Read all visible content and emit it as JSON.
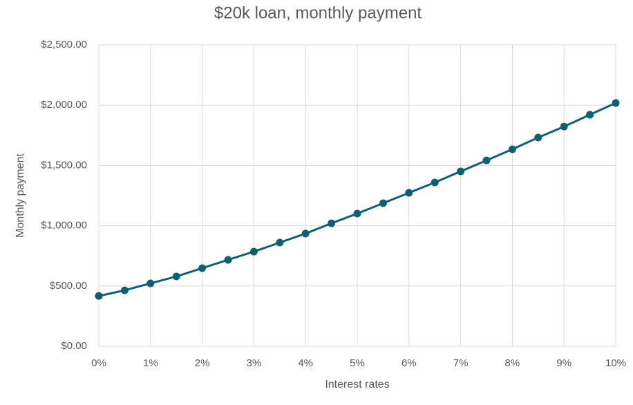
{
  "chart_data": {
    "type": "line",
    "title": "$20k loan, monthly payment",
    "x_label": "Interest rates",
    "y_label": "Monthly payment",
    "x": [
      0,
      0.5,
      1,
      1.5,
      2,
      2.5,
      3,
      3.5,
      4,
      4.5,
      5,
      5.5,
      6,
      6.5,
      7,
      7.5,
      8,
      8.5,
      9,
      9.5,
      10
    ],
    "values": [
      417,
      464,
      522,
      579,
      648,
      717,
      785,
      860,
      935,
      1020,
      1101,
      1187,
      1273,
      1359,
      1451,
      1542,
      1634,
      1732,
      1823,
      1921,
      2018
    ],
    "color": "#0f5f73",
    "xlim": [
      0,
      10
    ],
    "xticks": [
      {
        "value": 0,
        "label": "0%"
      },
      {
        "value": 1,
        "label": "1%"
      },
      {
        "value": 2,
        "label": "2%"
      },
      {
        "value": 3,
        "label": "3%"
      },
      {
        "value": 4,
        "label": "4%"
      },
      {
        "value": 5,
        "label": "5%"
      },
      {
        "value": 6,
        "label": "6%"
      },
      {
        "value": 7,
        "label": "7%"
      },
      {
        "value": 8,
        "label": "8%"
      },
      {
        "value": 9,
        "label": "9%"
      },
      {
        "value": 10,
        "label": "10%"
      }
    ],
    "ylim": [
      0,
      2500
    ],
    "yticks": [
      {
        "value": 0,
        "label": "$0.00"
      },
      {
        "value": 500,
        "label": "$500.00"
      },
      {
        "value": 1000,
        "label": "$1,000.00"
      },
      {
        "value": 1500,
        "label": "$1,500.00"
      },
      {
        "value": 2000,
        "label": "$2,000.00"
      },
      {
        "value": 2500,
        "label": "$2,500.00"
      }
    ],
    "grid": true
  }
}
